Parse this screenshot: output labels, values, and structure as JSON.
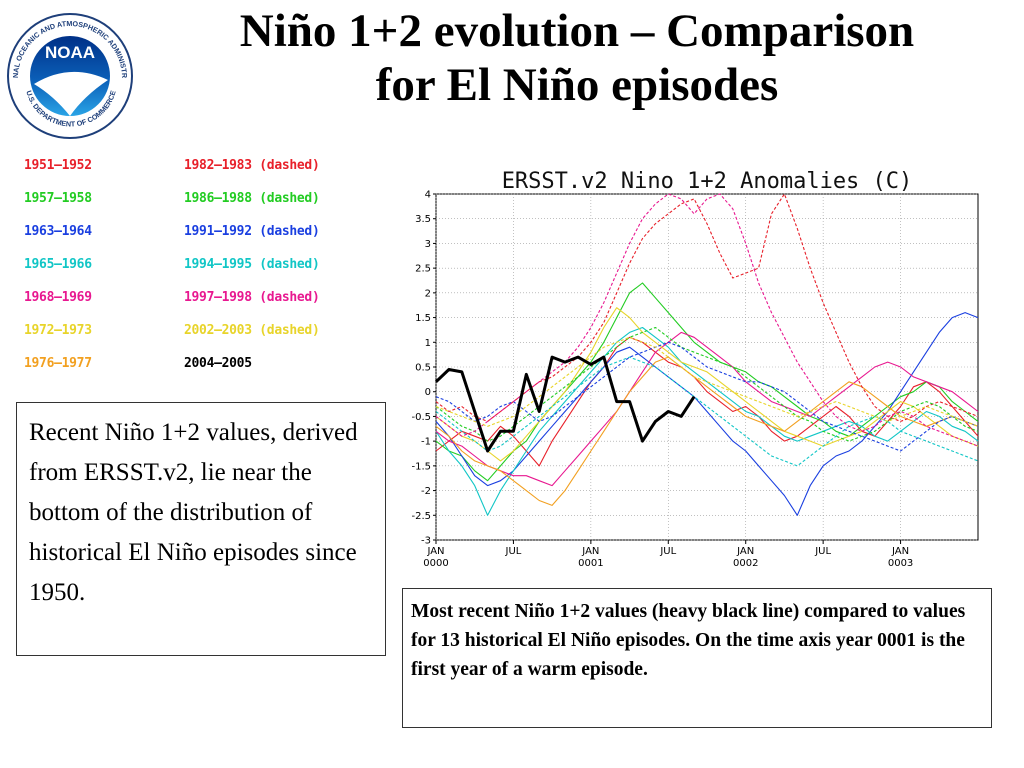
{
  "logo": {
    "text": "NOAA",
    "ring_text": "NATIONAL OCEANIC AND ATMOSPHERIC ADMINISTRATION",
    "ring_text_bottom": "U.S. DEPARTMENT OF COMMERCE",
    "colors": {
      "ring": "#ffffff",
      "disc_top": "#003087",
      "disc_bottom": "#1a90d8",
      "bird": "#ffffff"
    }
  },
  "title": {
    "line1": "Niño 1+2 evolution – Comparison",
    "line2": "for El Niño episodes"
  },
  "legend": {
    "left": [
      {
        "label": "1951–1952",
        "color": "#e8202a"
      },
      {
        "label": "1957–1958",
        "color": "#22cc22"
      },
      {
        "label": "1963–1964",
        "color": "#1a3fe0"
      },
      {
        "label": "1965–1966",
        "color": "#11c6c6"
      },
      {
        "label": "1968–1969",
        "color": "#e81890"
      },
      {
        "label": "1972–1973",
        "color": "#e8d42a"
      },
      {
        "label": "1976–1977",
        "color": "#f2a020"
      }
    ],
    "right": [
      {
        "label": "1982–1983 (dashed)",
        "color": "#e8202a"
      },
      {
        "label": "1986–1988 (dashed)",
        "color": "#22cc22"
      },
      {
        "label": "1991–1992 (dashed)",
        "color": "#1a3fe0"
      },
      {
        "label": "1994–1995 (dashed)",
        "color": "#11c6c6"
      },
      {
        "label": "1997–1998 (dashed)",
        "color": "#e81890"
      },
      {
        "label": "2002–2003 (dashed)",
        "color": "#e8d42a"
      },
      {
        "label": "2004–2005",
        "color": "#000000"
      }
    ]
  },
  "left_note": "Recent Niño 1+2 values, derived from ERSST.v2, lie near the bottom of the distribution of historical El Niño episodes since 1950.",
  "caption": "Most recent Niño 1+2 values (heavy black line) compared to values for 13 historical El Niño episodes. On the time axis year 0001 is the first year of a warm episode.",
  "chart_data": {
    "type": "line",
    "title": "ERSST.v2 Nino 1+2 Anomalies (C)",
    "xlabel": "",
    "ylabel": "",
    "ylim": [
      -3,
      4
    ],
    "xlim": [
      0,
      42
    ],
    "yticks": [
      -3,
      -2.5,
      -2,
      -1.5,
      -1,
      -0.5,
      0,
      0.5,
      1,
      1.5,
      2,
      2.5,
      3,
      3.5,
      4
    ],
    "ytick_labels": [
      "-3",
      "-2.5",
      "-2",
      "-1.5",
      "-1",
      "-0.5",
      "0",
      "0.5",
      "1",
      "1.5",
      "2",
      "2.5",
      "3",
      "3.5",
      "4"
    ],
    "xticks": [
      {
        "x": 0,
        "label": "JAN",
        "sub": "0000"
      },
      {
        "x": 6,
        "label": "JUL",
        "sub": ""
      },
      {
        "x": 12,
        "label": "JAN",
        "sub": "0001"
      },
      {
        "x": 18,
        "label": "JUL",
        "sub": ""
      },
      {
        "x": 24,
        "label": "JAN",
        "sub": "0002"
      },
      {
        "x": 30,
        "label": "JUL",
        "sub": ""
      },
      {
        "x": 36,
        "label": "JAN",
        "sub": "0003"
      }
    ],
    "grid": true,
    "series": [
      {
        "name": "1951–1952",
        "color": "#e8202a",
        "dashed": false,
        "values": [
          -1.2,
          -1.0,
          -0.8,
          -0.9,
          -1.0,
          -0.7,
          -0.9,
          -1.2,
          -1.5,
          -1.0,
          -0.6,
          -0.2,
          0.2,
          0.5,
          0.9,
          1.1,
          1.0,
          0.8,
          0.6,
          0.5,
          0.3,
          0.0,
          -0.2,
          -0.4,
          -0.3,
          -0.5,
          -0.8,
          -1.0,
          -0.9,
          -0.7,
          -0.5,
          -0.3,
          -0.5,
          -0.8,
          -0.9,
          -0.6,
          -0.3,
          0.1,
          0.2,
          0.0,
          -0.3,
          -0.6,
          -0.9
        ]
      },
      {
        "name": "1957–1958",
        "color": "#22cc22",
        "dashed": false,
        "values": [
          -1.0,
          -1.2,
          -1.3,
          -1.6,
          -1.8,
          -1.5,
          -1.2,
          -1.0,
          -0.6,
          -0.3,
          0.0,
          0.3,
          0.6,
          1.0,
          1.5,
          2.0,
          2.2,
          1.9,
          1.6,
          1.3,
          1.0,
          0.8,
          0.6,
          0.5,
          0.4,
          0.2,
          0.1,
          -0.1,
          -0.3,
          -0.5,
          -0.6,
          -0.8,
          -0.9,
          -0.7,
          -0.5,
          -0.3,
          -0.1,
          0.0,
          0.2,
          0.1,
          -0.2,
          -0.4,
          -0.6
        ]
      },
      {
        "name": "1963–1964",
        "color": "#1a3fe0",
        "dashed": false,
        "values": [
          -0.6,
          -0.9,
          -1.3,
          -1.7,
          -1.9,
          -1.8,
          -1.6,
          -1.3,
          -1.0,
          -0.7,
          -0.4,
          -0.1,
          0.2,
          0.5,
          0.8,
          0.9,
          0.7,
          0.5,
          0.3,
          0.1,
          -0.1,
          -0.4,
          -0.7,
          -1.0,
          -1.2,
          -1.5,
          -1.8,
          -2.1,
          -2.5,
          -1.9,
          -1.5,
          -1.3,
          -1.2,
          -1.0,
          -0.7,
          -0.4,
          0.0,
          0.4,
          0.8,
          1.2,
          1.5,
          1.6,
          1.5
        ]
      },
      {
        "name": "1965–1966",
        "color": "#11c6c6",
        "dashed": false,
        "values": [
          -0.8,
          -1.2,
          -1.5,
          -1.9,
          -2.5,
          -2.0,
          -1.6,
          -1.2,
          -0.8,
          -0.5,
          -0.2,
          0.1,
          0.4,
          0.7,
          1.0,
          1.2,
          1.3,
          1.1,
          0.9,
          0.6,
          0.4,
          0.2,
          0.0,
          -0.2,
          -0.4,
          -0.5,
          -0.7,
          -0.9,
          -1.0,
          -0.9,
          -0.8,
          -0.7,
          -0.6,
          -0.7,
          -0.9,
          -1.0,
          -0.8,
          -0.6,
          -0.4,
          -0.5,
          -0.7,
          -0.8,
          -1.0
        ]
      },
      {
        "name": "1968–1969",
        "color": "#e81890",
        "dashed": false,
        "values": [
          -0.8,
          -1.0,
          -1.1,
          -1.3,
          -1.5,
          -1.6,
          -1.7,
          -1.7,
          -1.8,
          -1.9,
          -1.6,
          -1.3,
          -1.0,
          -0.7,
          -0.4,
          0.0,
          0.4,
          0.8,
          1.0,
          1.2,
          1.1,
          0.9,
          0.7,
          0.5,
          0.2,
          0.0,
          -0.2,
          -0.3,
          -0.4,
          -0.5,
          -0.3,
          -0.1,
          0.1,
          0.3,
          0.5,
          0.6,
          0.5,
          0.3,
          0.2,
          0.1,
          0.0,
          -0.2,
          -0.4
        ]
      },
      {
        "name": "1972–1973",
        "color": "#e8d42a",
        "dashed": false,
        "values": [
          -0.5,
          -0.7,
          -0.9,
          -1.0,
          -1.2,
          -1.4,
          -1.2,
          -0.9,
          -0.6,
          -0.3,
          0.0,
          0.4,
          0.8,
          1.3,
          1.7,
          1.5,
          1.2,
          1.0,
          0.8,
          0.6,
          0.5,
          0.4,
          0.2,
          0.0,
          -0.2,
          -0.4,
          -0.6,
          -0.8,
          -0.9,
          -1.0,
          -1.1,
          -1.0,
          -0.9,
          -0.8,
          -0.6,
          -0.4,
          -0.2,
          -0.3,
          -0.5,
          -0.7,
          -0.9,
          -1.0,
          -1.1
        ]
      },
      {
        "name": "1976–1977",
        "color": "#f2a020",
        "dashed": false,
        "values": [
          -0.7,
          -0.9,
          -1.2,
          -1.4,
          -1.5,
          -1.6,
          -1.8,
          -2.0,
          -2.2,
          -2.3,
          -2.0,
          -1.6,
          -1.2,
          -0.8,
          -0.4,
          0.0,
          0.3,
          0.6,
          0.7,
          0.5,
          0.3,
          0.1,
          -0.1,
          -0.3,
          -0.5,
          -0.6,
          -0.7,
          -0.8,
          -0.6,
          -0.4,
          -0.2,
          0.0,
          0.2,
          0.1,
          -0.1,
          -0.3,
          -0.5,
          -0.6,
          -0.7,
          -0.6,
          -0.5,
          -0.6,
          -0.7
        ]
      },
      {
        "name": "1982–1983 (dashed)",
        "color": "#e8202a",
        "dashed": true,
        "values": [
          -0.2,
          -0.4,
          -0.3,
          -0.5,
          -0.6,
          -0.4,
          -0.2,
          0.0,
          0.2,
          0.3,
          0.5,
          0.7,
          1.0,
          1.4,
          2.0,
          2.6,
          3.1,
          3.4,
          3.6,
          3.8,
          3.9,
          3.4,
          2.8,
          2.3,
          2.4,
          2.5,
          3.6,
          4.0,
          3.3,
          2.5,
          1.8,
          1.2,
          0.6,
          0.1,
          -0.3,
          -0.5,
          -0.6,
          -0.5,
          -0.3,
          -0.2,
          -0.3,
          -0.4,
          -0.5
        ]
      },
      {
        "name": "1986–1988 (dashed)",
        "color": "#22cc22",
        "dashed": true,
        "values": [
          -0.3,
          -0.5,
          -0.7,
          -0.8,
          -1.0,
          -0.9,
          -0.7,
          -0.5,
          -0.3,
          -0.1,
          0.1,
          0.3,
          0.5,
          0.7,
          0.9,
          1.1,
          1.2,
          1.3,
          1.1,
          0.9,
          0.8,
          0.7,
          0.6,
          0.5,
          0.3,
          0.1,
          -0.1,
          -0.3,
          -0.5,
          -0.6,
          -0.8,
          -0.9,
          -1.0,
          -0.9,
          -0.8,
          -0.6,
          -0.4,
          -0.3,
          -0.2,
          -0.3,
          -0.5,
          -0.7,
          -0.8
        ]
      },
      {
        "name": "1991–1992 (dashed)",
        "color": "#1a3fe0",
        "dashed": true,
        "values": [
          -0.1,
          -0.2,
          -0.4,
          -0.6,
          -0.5,
          -0.3,
          -0.2,
          -0.4,
          -0.6,
          -0.5,
          -0.3,
          -0.1,
          0.1,
          0.3,
          0.5,
          0.7,
          0.8,
          0.9,
          1.0,
          0.9,
          0.7,
          0.5,
          0.4,
          0.3,
          0.2,
          0.2,
          0.1,
          0.0,
          -0.2,
          -0.4,
          -0.6,
          -0.7,
          -0.8,
          -0.9,
          -1.0,
          -1.1,
          -1.2,
          -1.0,
          -0.8,
          -0.6,
          -0.5,
          -0.6,
          -0.7
        ]
      },
      {
        "name": "1994–1995 (dashed)",
        "color": "#11c6c6",
        "dashed": true,
        "values": [
          -0.4,
          -0.6,
          -0.8,
          -1.0,
          -1.2,
          -1.1,
          -0.9,
          -0.7,
          -0.5,
          -0.3,
          -0.1,
          0.1,
          0.3,
          0.5,
          0.6,
          0.7,
          0.6,
          0.5,
          0.3,
          0.1,
          -0.1,
          -0.3,
          -0.5,
          -0.7,
          -0.9,
          -1.1,
          -1.3,
          -1.4,
          -1.5,
          -1.3,
          -1.1,
          -0.9,
          -0.7,
          -0.6,
          -0.5,
          -0.6,
          -0.8,
          -0.9,
          -1.0,
          -1.1,
          -1.2,
          -1.3,
          -1.4
        ]
      },
      {
        "name": "1997–1998 (dashed)",
        "color": "#e81890",
        "dashed": true,
        "values": [
          -0.5,
          -0.7,
          -0.9,
          -0.8,
          -0.6,
          -0.4,
          -0.2,
          0.0,
          0.2,
          0.4,
          0.6,
          0.9,
          1.3,
          1.8,
          2.4,
          3.0,
          3.5,
          3.8,
          4.0,
          3.9,
          3.6,
          3.9,
          4.0,
          3.7,
          3.0,
          2.2,
          1.6,
          1.1,
          0.6,
          0.2,
          -0.2,
          -0.5,
          -0.7,
          -0.8,
          -0.7,
          -0.5,
          -0.4,
          -0.5,
          -0.7,
          -0.8,
          -0.9,
          -1.0,
          -1.1
        ]
      },
      {
        "name": "2002–2003 (dashed)",
        "color": "#e8d42a",
        "dashed": true,
        "values": [
          -0.3,
          -0.4,
          -0.5,
          -0.6,
          -0.7,
          -0.6,
          -0.5,
          -0.3,
          -0.1,
          0.1,
          0.3,
          0.5,
          0.7,
          0.9,
          1.0,
          1.1,
          1.0,
          0.9,
          0.7,
          0.5,
          0.3,
          0.2,
          0.1,
          0.0,
          -0.1,
          -0.2,
          -0.3,
          -0.4,
          -0.5,
          -0.4,
          -0.3,
          -0.2,
          -0.3,
          -0.4,
          -0.5,
          -0.6,
          -0.5,
          -0.4,
          -0.3,
          -0.4,
          -0.5,
          -0.6,
          -0.7
        ]
      },
      {
        "name": "2004–2005",
        "color": "#000000",
        "dashed": false,
        "heavy": true,
        "values": [
          0.2,
          0.45,
          0.4,
          -0.4,
          -1.2,
          -0.8,
          -0.8,
          0.35,
          -0.4,
          0.7,
          0.6,
          0.7,
          0.55,
          0.7,
          -0.2,
          -0.2,
          -1.0,
          -0.6,
          -0.4,
          -0.5,
          -0.1
        ]
      }
    ]
  }
}
